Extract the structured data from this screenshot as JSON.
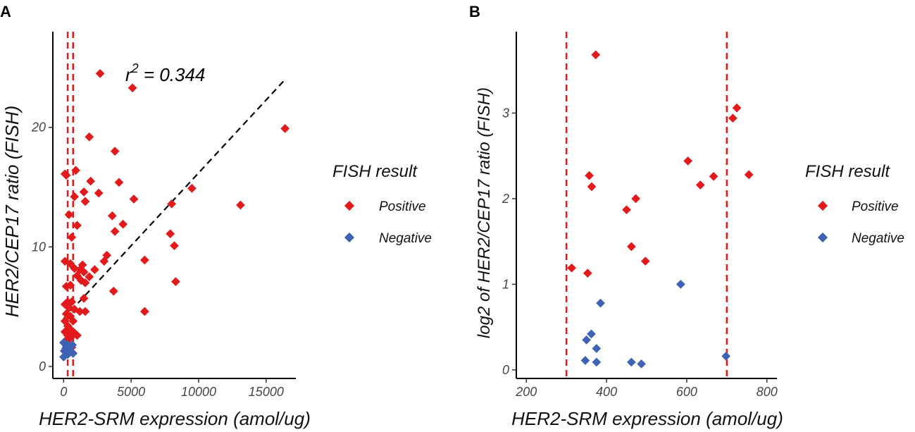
{
  "chart_data": [
    {
      "panel": "A",
      "type": "scatter",
      "xlabel": "HER2-SRM expression (amol/ug)",
      "ylabel": "HER2/CEP17 ratio (FISH)",
      "xlim": [
        -800,
        17200
      ],
      "ylim": [
        -1,
        28
      ],
      "xticks": [
        "0",
        "5000",
        "10000",
        "15000"
      ],
      "xtick_values": [
        0,
        5000,
        10000,
        15000
      ],
      "yticks": [
        "0",
        "10",
        "20"
      ],
      "ytick_values": [
        0,
        10,
        20
      ],
      "vlines": [
        300,
        700
      ],
      "annotation": {
        "base": "r",
        "sup": "2",
        "rest": " = 0.344"
      },
      "trend_line": {
        "x": [
          0,
          16400
        ],
        "y": [
          4.0,
          24.0
        ]
      },
      "series": [
        {
          "name": "Positive",
          "color": "#e31a1c",
          "points": [
            [
              2700,
              24.5
            ],
            [
              5100,
              23.3
            ],
            [
              16400,
              19.9
            ],
            [
              1900,
              19.2
            ],
            [
              3800,
              18.0
            ],
            [
              100,
              16.1
            ],
            [
              200,
              16.0
            ],
            [
              900,
              16.4
            ],
            [
              2000,
              15.5
            ],
            [
              4100,
              15.4
            ],
            [
              9500,
              14.9
            ],
            [
              1500,
              14.6
            ],
            [
              2600,
              14.5
            ],
            [
              800,
              14.2
            ],
            [
              5200,
              14.0
            ],
            [
              1600,
              13.8
            ],
            [
              8000,
              13.6
            ],
            [
              13100,
              13.5
            ],
            [
              400,
              12.7
            ],
            [
              3600,
              12.6
            ],
            [
              4400,
              11.9
            ],
            [
              1000,
              11.8
            ],
            [
              3800,
              11.3
            ],
            [
              7900,
              11.1
            ],
            [
              600,
              10.8
            ],
            [
              8200,
              10.1
            ],
            [
              3200,
              9.3
            ],
            [
              3000,
              8.8
            ],
            [
              6000,
              8.9
            ],
            [
              100,
              8.8
            ],
            [
              500,
              8.6
            ],
            [
              1400,
              8.5
            ],
            [
              800,
              8.2
            ],
            [
              1200,
              8.1
            ],
            [
              2300,
              8.1
            ],
            [
              1500,
              7.9
            ],
            [
              1000,
              7.6
            ],
            [
              1900,
              7.5
            ],
            [
              1300,
              7.2
            ],
            [
              1600,
              7.0
            ],
            [
              8300,
              7.1
            ],
            [
              3700,
              6.3
            ],
            [
              200,
              6.7
            ],
            [
              500,
              6.8
            ],
            [
              1500,
              5.7
            ],
            [
              300,
              5.4
            ],
            [
              600,
              5.4
            ],
            [
              100,
              5.2
            ],
            [
              400,
              4.9
            ],
            [
              800,
              4.8
            ],
            [
              1200,
              4.6
            ],
            [
              1600,
              4.6
            ],
            [
              6000,
              4.6
            ],
            [
              200,
              4.4
            ],
            [
              500,
              4.2
            ],
            [
              700,
              3.8
            ],
            [
              100,
              3.8
            ],
            [
              300,
              3.4
            ],
            [
              400,
              3.2
            ],
            [
              600,
              3.0
            ],
            [
              100,
              2.9
            ],
            [
              800,
              2.8
            ],
            [
              1000,
              2.6
            ],
            [
              300,
              2.6
            ],
            [
              500,
              2.4
            ],
            [
              200,
              2.2
            ],
            [
              400,
              1.8
            ],
            [
              600,
              1.6
            ]
          ]
        },
        {
          "name": "Negative",
          "color": "#3f63b4",
          "points": [
            [
              0,
              2.0
            ],
            [
              100,
              1.9
            ],
            [
              200,
              1.7
            ],
            [
              300,
              1.8
            ],
            [
              150,
              1.5
            ],
            [
              250,
              1.5
            ],
            [
              350,
              1.4
            ],
            [
              50,
              1.3
            ],
            [
              450,
              1.2
            ],
            [
              600,
              1.2
            ],
            [
              700,
              1.1
            ],
            [
              0,
              0.8
            ],
            [
              300,
              1.0
            ],
            [
              500,
              1.6
            ],
            [
              650,
              1.8
            ]
          ]
        }
      ]
    },
    {
      "panel": "B",
      "type": "scatter",
      "xlabel": "HER2-SRM expression (amol/ug)",
      "ylabel": "log2 of HER2/CEP17 ratio (FISH)",
      "xlim": [
        175,
        825
      ],
      "ylim": [
        -0.1,
        3.95
      ],
      "xticks": [
        "200",
        "400",
        "600",
        "800"
      ],
      "xtick_values": [
        200,
        400,
        600,
        800
      ],
      "yticks": [
        "0",
        "1",
        "2",
        "3"
      ],
      "ytick_values": [
        0,
        1,
        2,
        3
      ],
      "vlines": [
        300,
        700
      ],
      "series": [
        {
          "name": "Positive",
          "color": "#e31a1c",
          "points": [
            [
              373,
              3.68
            ],
            [
              725,
              3.06
            ],
            [
              715,
              2.94
            ],
            [
              603,
              2.44
            ],
            [
              357,
              2.27
            ],
            [
              755,
              2.28
            ],
            [
              667,
              2.26
            ],
            [
              363,
              2.14
            ],
            [
              634,
              2.16
            ],
            [
              473,
              2.0
            ],
            [
              450,
              1.87
            ],
            [
              462,
              1.44
            ],
            [
              497,
              1.27
            ],
            [
              313,
              1.19
            ],
            [
              353,
              1.13
            ]
          ]
        },
        {
          "name": "Negative",
          "color": "#3f63b4",
          "points": [
            [
              585,
              1.0
            ],
            [
              385,
              0.78
            ],
            [
              362,
              0.42
            ],
            [
              350,
              0.35
            ],
            [
              375,
              0.25
            ],
            [
              698,
              0.16
            ],
            [
              347,
              0.11
            ],
            [
              375,
              0.09
            ],
            [
              462,
              0.09
            ],
            [
              487,
              0.07
            ]
          ]
        }
      ]
    }
  ],
  "legends": [
    {
      "title": "FISH result",
      "items": [
        "Positive",
        "Negative"
      ]
    },
    {
      "title": "FISH result",
      "items": [
        "Positive",
        "Negative"
      ]
    }
  ]
}
